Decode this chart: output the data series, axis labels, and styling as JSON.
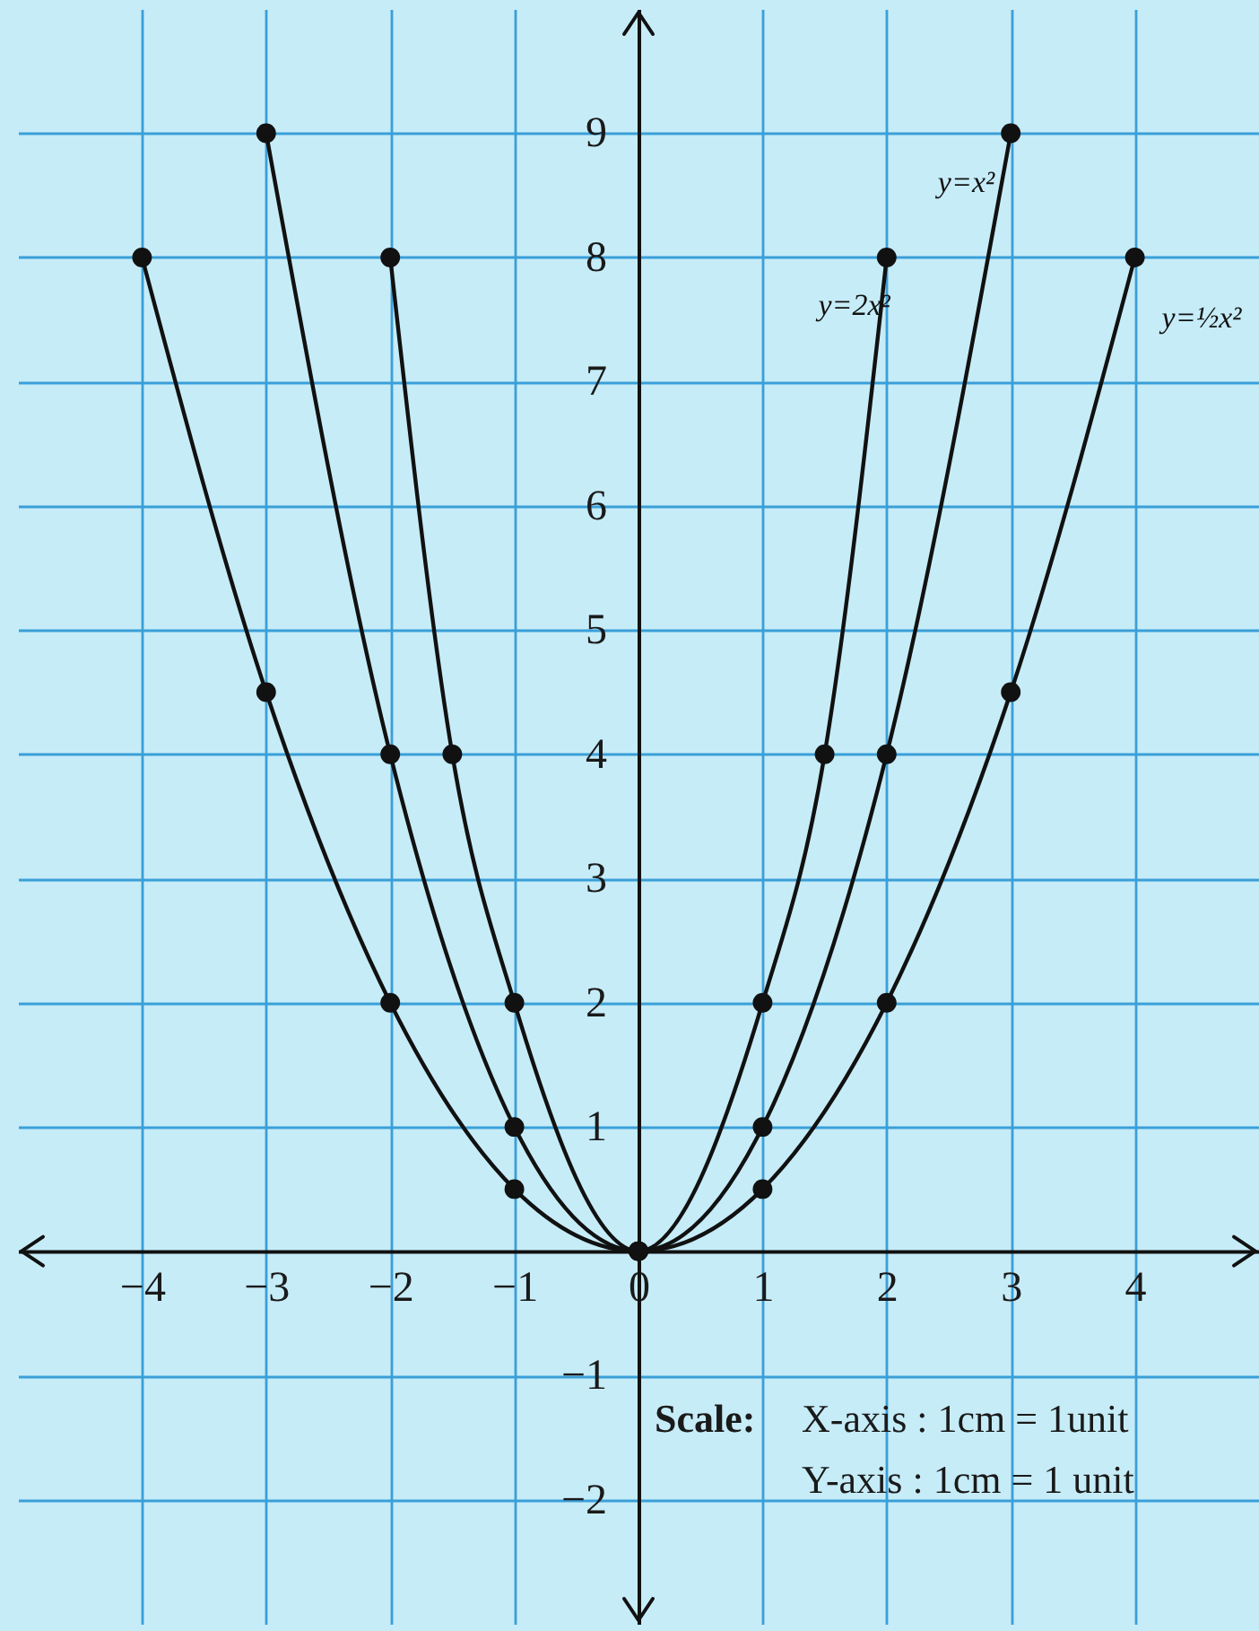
{
  "chart_data": {
    "type": "line",
    "series": [
      {
        "name": "y=x²",
        "color": "#111111",
        "x": [
          -3,
          -2,
          -1,
          0,
          1,
          2,
          3
        ],
        "values": [
          9,
          4,
          1,
          0,
          1,
          4,
          9
        ]
      },
      {
        "name": "y=2x²",
        "color": "#111111",
        "x": [
          -2,
          -1.5,
          -1,
          0,
          1,
          1.5,
          2
        ],
        "values": [
          8,
          4,
          2,
          0,
          2,
          4,
          8
        ]
      },
      {
        "name": "y=½x²",
        "color": "#111111",
        "x": [
          -4,
          -3,
          -2,
          -1,
          0,
          1,
          2,
          3,
          4
        ],
        "values": [
          8,
          4.5,
          2,
          0.5,
          0,
          0.5,
          2,
          4.5,
          8
        ]
      }
    ],
    "xlim": [
      -5,
      5
    ],
    "ylim": [
      -3,
      10
    ],
    "xticks": [
      -4,
      -3,
      -2,
      -1,
      0,
      1,
      2,
      3,
      4
    ],
    "yticks": [
      -2,
      -1,
      1,
      2,
      3,
      4,
      5,
      6,
      7,
      8,
      9
    ],
    "grid": true,
    "marker": "circle",
    "line_style": "solid",
    "annotations": [
      "Scale:",
      "X-axis : 1cm = 1unit",
      "Y-axis : 1cm = 1 unit"
    ]
  }
}
